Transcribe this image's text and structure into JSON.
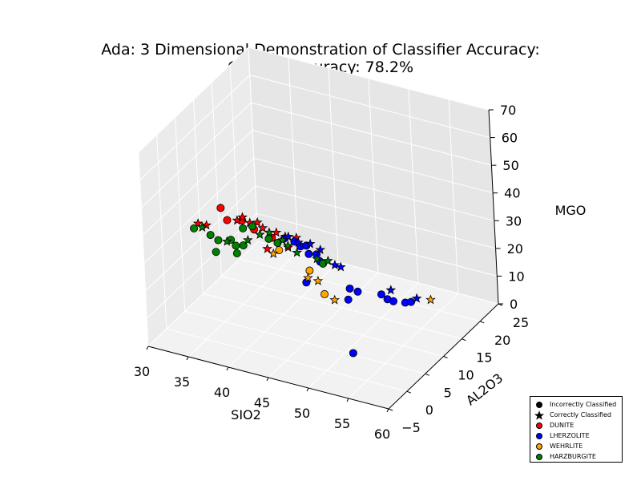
{
  "chart_data": {
    "type": "scatter",
    "title_line1": "Ada: 3 Dimensional Demonstration of Classifier Accuracy:",
    "title_line2": "Overall Accuracy: 78.2%",
    "xlabel": "SIO2",
    "ylabel": "AL2O3",
    "zlabel": "MGO",
    "xlim": [
      30,
      60
    ],
    "ylim": [
      -5,
      25
    ],
    "zlim": [
      0,
      70
    ],
    "x_ticks": [
      "30",
      "35",
      "40",
      "45",
      "50",
      "55",
      "60"
    ],
    "y_ticks": [
      "−5",
      "0",
      "5",
      "10",
      "15",
      "20",
      "25"
    ],
    "z_ticks": [
      "0",
      "10",
      "20",
      "30",
      "40",
      "50",
      "60",
      "70"
    ],
    "grid": true,
    "legend_position": "bottom-right",
    "colors": {
      "DUNITE": "#ff0000",
      "LHERZOLITE": "#0000ff",
      "WEHRLITE": "#ffa500",
      "HARZBURGITE": "#008000"
    },
    "legend": [
      {
        "label": "Incorrectly Classified",
        "marker": "circle",
        "color": "#000000"
      },
      {
        "label": "Correctly Classified",
        "marker": "star",
        "color": "#000000"
      },
      {
        "label": "DUNITE",
        "marker": "circle",
        "color": "#ff0000"
      },
      {
        "label": "LHERZOLITE",
        "marker": "circle",
        "color": "#0000ff"
      },
      {
        "label": "WEHRLITE",
        "marker": "circle",
        "color": "#ffa500"
      },
      {
        "label": "HARZBURGITE",
        "marker": "circle",
        "color": "#008000"
      }
    ],
    "series": [
      {
        "name": "DUNITE",
        "color": "#ff0000",
        "points": [
          {
            "sio2": 37.5,
            "al2o3": 0.2,
            "mgo": 49,
            "correct": false
          },
          {
            "sio2": 38.2,
            "al2o3": 0.3,
            "mgo": 45,
            "correct": false
          },
          {
            "sio2": 40.0,
            "al2o3": 0.5,
            "mgo": 46,
            "correct": false
          },
          {
            "sio2": 41.5,
            "al2o3": 0.4,
            "mgo": 44,
            "correct": false
          },
          {
            "sio2": 43.5,
            "al2o3": 0.8,
            "mgo": 42,
            "correct": false
          },
          {
            "sio2": 34.5,
            "al2o3": 0.3,
            "mgo": 41,
            "correct": true
          },
          {
            "sio2": 35.5,
            "al2o3": 0.4,
            "mgo": 41,
            "correct": true
          },
          {
            "sio2": 39.5,
            "al2o3": 0.2,
            "mgo": 46,
            "correct": true
          },
          {
            "sio2": 40.0,
            "al2o3": 0.6,
            "mgo": 47,
            "correct": true
          },
          {
            "sio2": 41.0,
            "al2o3": 0.4,
            "mgo": 46,
            "correct": true
          },
          {
            "sio2": 42.0,
            "al2o3": 0.3,
            "mgo": 47,
            "correct": true
          },
          {
            "sio2": 42.5,
            "al2o3": 0.6,
            "mgo": 45,
            "correct": true
          },
          {
            "sio2": 44.0,
            "al2o3": 1.0,
            "mgo": 44,
            "correct": true
          },
          {
            "sio2": 45.0,
            "al2o3": 1.2,
            "mgo": 43,
            "correct": true
          },
          {
            "sio2": 46.5,
            "al2o3": 1.0,
            "mgo": 44,
            "correct": true
          },
          {
            "sio2": 43.0,
            "al2o3": 0.5,
            "mgo": 38,
            "correct": true
          },
          {
            "sio2": 45.5,
            "al2o3": 0.8,
            "mgo": 40,
            "correct": true
          }
        ]
      },
      {
        "name": "LHERZOLITE",
        "color": "#0000ff",
        "points": [
          {
            "sio2": 44.5,
            "al2o3": 2.0,
            "mgo": 41,
            "correct": false
          },
          {
            "sio2": 45.5,
            "al2o3": 2.5,
            "mgo": 40,
            "correct": false
          },
          {
            "sio2": 46.0,
            "al2o3": 3.0,
            "mgo": 38,
            "correct": false
          },
          {
            "sio2": 46.5,
            "al2o3": 3.5,
            "mgo": 38,
            "correct": false
          },
          {
            "sio2": 47.0,
            "al2o3": 3.0,
            "mgo": 36,
            "correct": false
          },
          {
            "sio2": 47.5,
            "al2o3": 4.0,
            "mgo": 35,
            "correct": false
          },
          {
            "sio2": 48.0,
            "al2o3": 3.8,
            "mgo": 33,
            "correct": false
          },
          {
            "sio2": 47.0,
            "al2o3": 2.0,
            "mgo": 27,
            "correct": false
          },
          {
            "sio2": 51.0,
            "al2o3": 5.0,
            "mgo": 24,
            "correct": false
          },
          {
            "sio2": 50.5,
            "al2o3": 5.5,
            "mgo": 19,
            "correct": false
          },
          {
            "sio2": 51.5,
            "al2o3": 6.0,
            "mgo": 22,
            "correct": false
          },
          {
            "sio2": 53.5,
            "al2o3": 8.0,
            "mgo": 20,
            "correct": false
          },
          {
            "sio2": 54.0,
            "al2o3": 8.5,
            "mgo": 18,
            "correct": false
          },
          {
            "sio2": 54.5,
            "al2o3": 9.0,
            "mgo": 17,
            "correct": false
          },
          {
            "sio2": 55.5,
            "al2o3": 10.0,
            "mgo": 16,
            "correct": false
          },
          {
            "sio2": 56.0,
            "al2o3": 10.5,
            "mgo": 16,
            "correct": false
          },
          {
            "sio2": 52.0,
            "al2o3": 3.0,
            "mgo": 4,
            "correct": false
          },
          {
            "sio2": 45.0,
            "al2o3": 2.0,
            "mgo": 42,
            "correct": true
          },
          {
            "sio2": 46.0,
            "al2o3": 2.5,
            "mgo": 40,
            "correct": true
          },
          {
            "sio2": 47.0,
            "al2o3": 3.5,
            "mgo": 39,
            "correct": true
          },
          {
            "sio2": 48.0,
            "al2o3": 4.0,
            "mgo": 37,
            "correct": true
          },
          {
            "sio2": 49.5,
            "al2o3": 4.5,
            "mgo": 32,
            "correct": true
          },
          {
            "sio2": 50.0,
            "al2o3": 5.0,
            "mgo": 31,
            "correct": true
          },
          {
            "sio2": 54.0,
            "al2o3": 9.5,
            "mgo": 20,
            "correct": true
          },
          {
            "sio2": 56.5,
            "al2o3": 11.0,
            "mgo": 17,
            "correct": true
          }
        ]
      },
      {
        "name": "WEHRLITE",
        "color": "#ffa500",
        "points": [
          {
            "sio2": 44.0,
            "al2o3": 1.5,
            "mgo": 37,
            "correct": false
          },
          {
            "sio2": 47.0,
            "al2o3": 3.0,
            "mgo": 30,
            "correct": false
          },
          {
            "sio2": 48.5,
            "al2o3": 3.5,
            "mgo": 22,
            "correct": false
          },
          {
            "sio2": 43.5,
            "al2o3": 1.0,
            "mgo": 36,
            "correct": true
          },
          {
            "sio2": 47.0,
            "al2o3": 2.5,
            "mgo": 28,
            "correct": true
          },
          {
            "sio2": 48.0,
            "al2o3": 3.0,
            "mgo": 27,
            "correct": true
          },
          {
            "sio2": 49.5,
            "al2o3": 4.0,
            "mgo": 20,
            "correct": true
          },
          {
            "sio2": 58.0,
            "al2o3": 11.5,
            "mgo": 17,
            "correct": true
          }
        ]
      },
      {
        "name": "HARZBURGITE",
        "color": "#008000",
        "points": [
          {
            "sio2": 34.0,
            "al2o3": 0.2,
            "mgo": 39,
            "correct": false
          },
          {
            "sio2": 36.0,
            "al2o3": 0.3,
            "mgo": 38,
            "correct": false
          },
          {
            "sio2": 36.5,
            "al2o3": 0.5,
            "mgo": 32,
            "correct": false
          },
          {
            "sio2": 37.0,
            "al2o3": 0.2,
            "mgo": 37,
            "correct": false
          },
          {
            "sio2": 38.5,
            "al2o3": 0.4,
            "mgo": 38,
            "correct": false
          },
          {
            "sio2": 39.0,
            "al2o3": 0.6,
            "mgo": 36,
            "correct": false
          },
          {
            "sio2": 39.0,
            "al2o3": 0.8,
            "mgo": 33,
            "correct": false
          },
          {
            "sio2": 40.0,
            "al2o3": 0.5,
            "mgo": 37,
            "correct": false
          },
          {
            "sio2": 40.0,
            "al2o3": 0.6,
            "mgo": 43,
            "correct": false
          },
          {
            "sio2": 41.0,
            "al2o3": 1.0,
            "mgo": 44,
            "correct": false
          },
          {
            "sio2": 43.0,
            "al2o3": 1.0,
            "mgo": 41,
            "correct": false
          },
          {
            "sio2": 44.0,
            "al2o3": 1.2,
            "mgo": 40,
            "correct": false
          },
          {
            "sio2": 48.5,
            "al2o3": 3.5,
            "mgo": 33,
            "correct": false
          },
          {
            "sio2": 35.0,
            "al2o3": 0.3,
            "mgo": 40,
            "correct": true
          },
          {
            "sio2": 38.0,
            "al2o3": 0.4,
            "mgo": 37,
            "correct": true
          },
          {
            "sio2": 40.5,
            "al2o3": 0.7,
            "mgo": 39,
            "correct": true
          },
          {
            "sio2": 42.0,
            "al2o3": 0.8,
            "mgo": 42,
            "correct": true
          },
          {
            "sio2": 43.0,
            "al2o3": 1.2,
            "mgo": 43,
            "correct": true
          },
          {
            "sio2": 44.5,
            "al2o3": 1.5,
            "mgo": 41,
            "correct": true
          },
          {
            "sio2": 45.0,
            "al2o3": 1.8,
            "mgo": 39,
            "correct": true
          },
          {
            "sio2": 46.0,
            "al2o3": 2.0,
            "mgo": 37,
            "correct": true
          },
          {
            "sio2": 48.0,
            "al2o3": 3.0,
            "mgo": 35,
            "correct": true
          },
          {
            "sio2": 49.0,
            "al2o3": 3.8,
            "mgo": 34,
            "correct": true
          }
        ]
      }
    ]
  }
}
